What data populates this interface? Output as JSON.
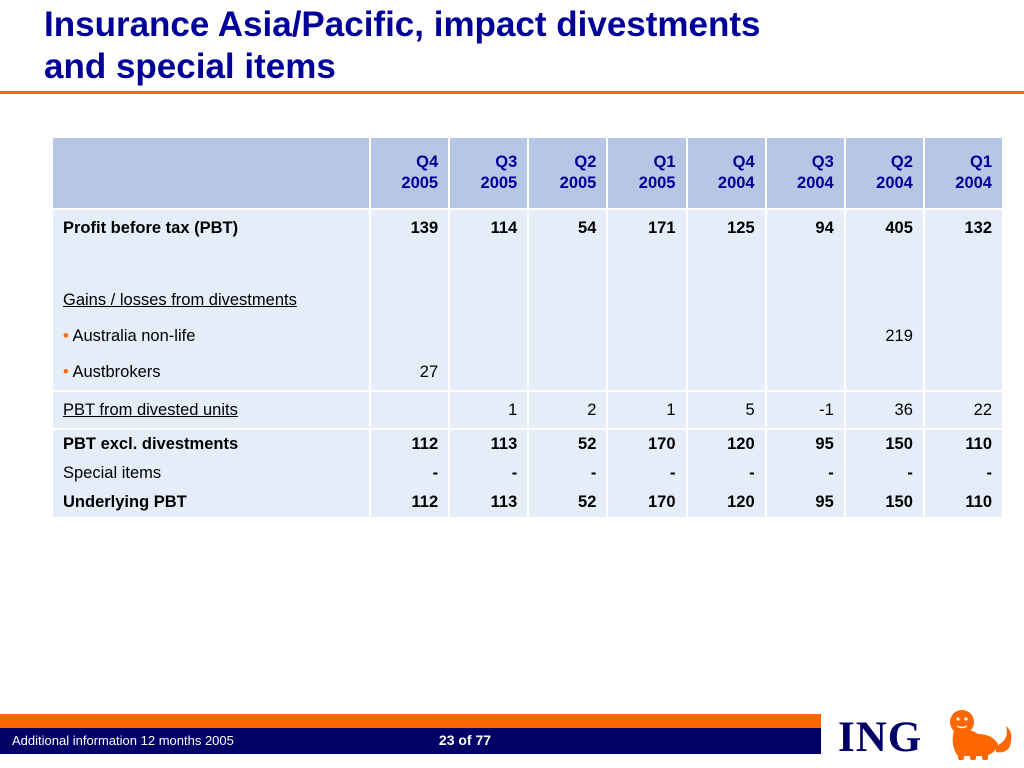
{
  "slide": {
    "title_line1": "Insurance Asia/Pacific, impact divestments",
    "title_line2": "and special items"
  },
  "table": {
    "columns": [
      {
        "q": "Q4",
        "y": "2005"
      },
      {
        "q": "Q3",
        "y": "2005"
      },
      {
        "q": "Q2",
        "y": "2005"
      },
      {
        "q": "Q1",
        "y": "2005"
      },
      {
        "q": "Q4",
        "y": "2004"
      },
      {
        "q": "Q3",
        "y": "2004"
      },
      {
        "q": "Q2",
        "y": "2004"
      },
      {
        "q": "Q1",
        "y": "2004"
      }
    ],
    "pbt": {
      "label": "Profit before tax (PBT)",
      "values": [
        "139",
        "114",
        "54",
        "171",
        "125",
        "94",
        "405",
        "132"
      ]
    },
    "gains_label": "Gains / losses from divestments",
    "australia": {
      "bullet": "•",
      "label": "Australia non-life",
      "values": [
        "",
        "",
        "",
        "",
        "",
        "",
        "219",
        ""
      ]
    },
    "austbrokers": {
      "bullet": "•",
      "label": "Austbrokers",
      "values": [
        "27",
        "",
        "",
        "",
        "",
        "",
        "",
        ""
      ]
    },
    "divested": {
      "label": "PBT from divested units",
      "values": [
        "",
        "1",
        "2",
        "1",
        "5",
        "-1",
        "36",
        "22"
      ]
    },
    "excl": {
      "label": "PBT excl. divestments",
      "values": [
        "112",
        "113",
        "52",
        "170",
        "120",
        "95",
        "150",
        "110"
      ]
    },
    "special": {
      "label": "Special items",
      "values": [
        "-",
        "-",
        "-",
        "-",
        "-",
        "-",
        "-",
        "-"
      ]
    },
    "underlying": {
      "label": "Underlying PBT",
      "values": [
        "112",
        "113",
        "52",
        "170",
        "120",
        "95",
        "150",
        "110"
      ]
    }
  },
  "footer": {
    "left_text": "Additional information 12 months 2005",
    "page": "23 of 77",
    "logo_text": "ING"
  },
  "colors": {
    "title": "#000099",
    "accent_orange": "#ff6600",
    "footer_blue": "#000066",
    "header_fill": "#b6c7e6",
    "body_fill": "#e5eef8"
  },
  "icons": [
    "ing-lion-icon"
  ]
}
